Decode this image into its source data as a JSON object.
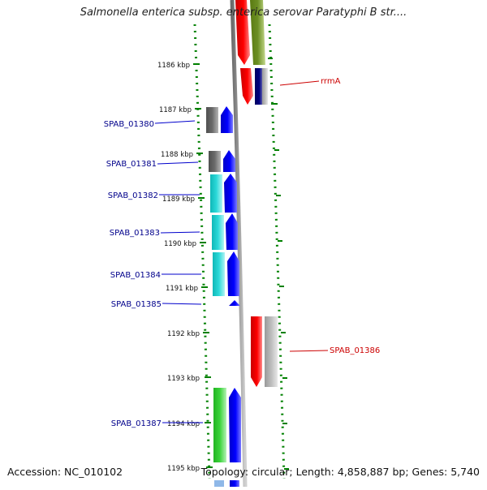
{
  "title": "Salmonella enterica subsp. enterica serovar Paratyphi B str....",
  "accession": "Accession: NC_010102",
  "topology": "Topology: circular; Length: 4,858,887 bp; Genes: 5,740",
  "ticks": [
    {
      "label": "1186 kbp"
    },
    {
      "label": "1187 kbp"
    },
    {
      "label": "1188 kbp"
    },
    {
      "label": "1189 kbp"
    },
    {
      "label": "1190 kbp"
    },
    {
      "label": "1191 kbp"
    },
    {
      "label": "1192 kbp"
    },
    {
      "label": "1193 kbp"
    },
    {
      "label": "1194 kbp"
    },
    {
      "label": "1195 kbp"
    }
  ],
  "gene_labels_left": [
    {
      "label": "SPAB_01380"
    },
    {
      "label": "SPAB_01381"
    },
    {
      "label": "SPAB_01382"
    },
    {
      "label": "SPAB_01383"
    },
    {
      "label": "SPAB_01384"
    },
    {
      "label": "SPAB_01385"
    },
    {
      "label": "SPAB_01387"
    }
  ],
  "gene_labels_right": [
    {
      "label": "rrmA"
    },
    {
      "label": "SPAB_01386"
    }
  ],
  "colors": {
    "forward_gene": "#0000ff",
    "reverse_gene": "#ff0000",
    "left_label": "#00008b",
    "right_label": "#cc0000",
    "backbone": "#808080",
    "tick": "#008000"
  }
}
